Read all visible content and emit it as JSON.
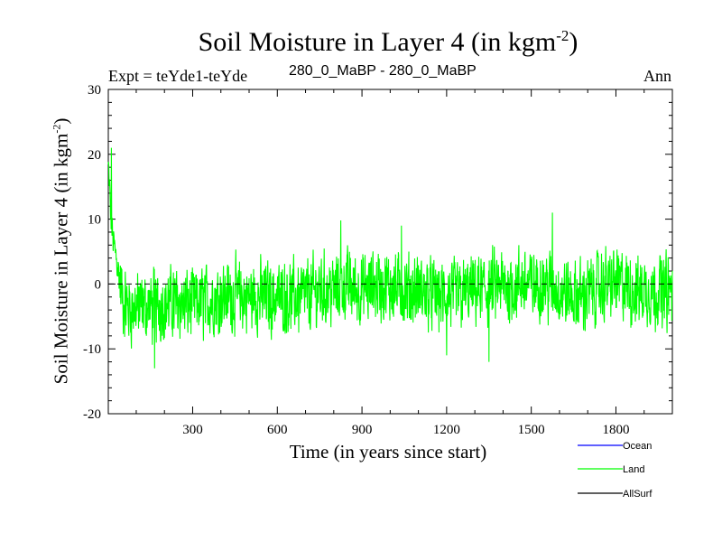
{
  "title": {
    "main": "Soil Moisture in Layer 4 (in kgm",
    "sup": "-2",
    "close": ")"
  },
  "subtitle_left": "Expt = teYde1-teYde",
  "subtitle_center": "280_0_MaBP - 280_0_MaBP",
  "subtitle_right": "Ann",
  "chart_data": {
    "type": "line",
    "title": "Soil Moisture in Layer 4 (in kgm-2)",
    "xlabel": "Time (in years since start)",
    "ylabel": "Soil Moisture in Layer 4 (in kgm-2)",
    "ylabel_parts": {
      "main": "Soil Moisture in Layer 4 (in kgm",
      "sup": "-2",
      "close": ")"
    },
    "xlim": [
      1,
      2000
    ],
    "ylim": [
      -20,
      30
    ],
    "x_ticks": [
      300,
      600,
      900,
      1200,
      1500,
      1800
    ],
    "y_ticks": [
      -20,
      -10,
      0,
      10,
      20,
      30
    ],
    "zero_line": {
      "y": 0,
      "style": "dashed"
    },
    "series": [
      {
        "name": "Ocean",
        "color": "#0000ff",
        "values": []
      },
      {
        "name": "Land",
        "color": "#00ff00",
        "x": [
          1,
          5,
          10,
          15,
          20,
          25,
          30,
          40,
          50,
          60,
          80,
          100,
          130,
          160,
          200,
          240,
          280,
          320,
          360,
          400,
          440,
          480,
          520,
          560,
          600,
          640,
          680,
          720,
          760,
          800,
          830,
          860,
          900,
          940,
          980,
          1020,
          1060,
          1100,
          1140,
          1180,
          1220,
          1260,
          1300,
          1340,
          1380,
          1420,
          1460,
          1500,
          1540,
          1580,
          1620,
          1660,
          1700,
          1740,
          1780,
          1820,
          1860,
          1900,
          1940,
          1980,
          2000
        ],
        "y_mean": [
          18,
          15,
          10,
          8,
          6,
          5,
          4,
          1,
          -2,
          -3,
          -4,
          -3.5,
          -3.5,
          -3.5,
          -3,
          -3,
          -3,
          -3,
          -2.5,
          -2,
          -2,
          -2,
          -2,
          -2,
          -2,
          -2,
          -2,
          -1.5,
          -1,
          -1,
          0,
          -0.5,
          -1,
          0,
          -0.5,
          -0.5,
          -1,
          -1,
          -1.5,
          -2,
          -2,
          -1.5,
          -1,
          -1,
          -0.5,
          -0.5,
          0,
          0,
          0,
          -0.5,
          -1.5,
          -2,
          -1.5,
          -0.5,
          0,
          0,
          -1,
          -1,
          -1,
          -1,
          -1
        ],
        "amplitude": 4.5,
        "peaks": [
          [
            12,
            21
          ],
          [
            825,
            9.8
          ],
          [
            1200,
            -11
          ],
          [
            1350,
            -12
          ],
          [
            1575,
            11
          ],
          [
            165,
            -13
          ],
          [
            1040,
            9
          ]
        ]
      },
      {
        "name": "AllSurf",
        "color": "#000000",
        "values": []
      }
    ],
    "legend": {
      "position": "bottom-right",
      "entries": [
        "Ocean",
        "Land",
        "AllSurf"
      ]
    }
  }
}
